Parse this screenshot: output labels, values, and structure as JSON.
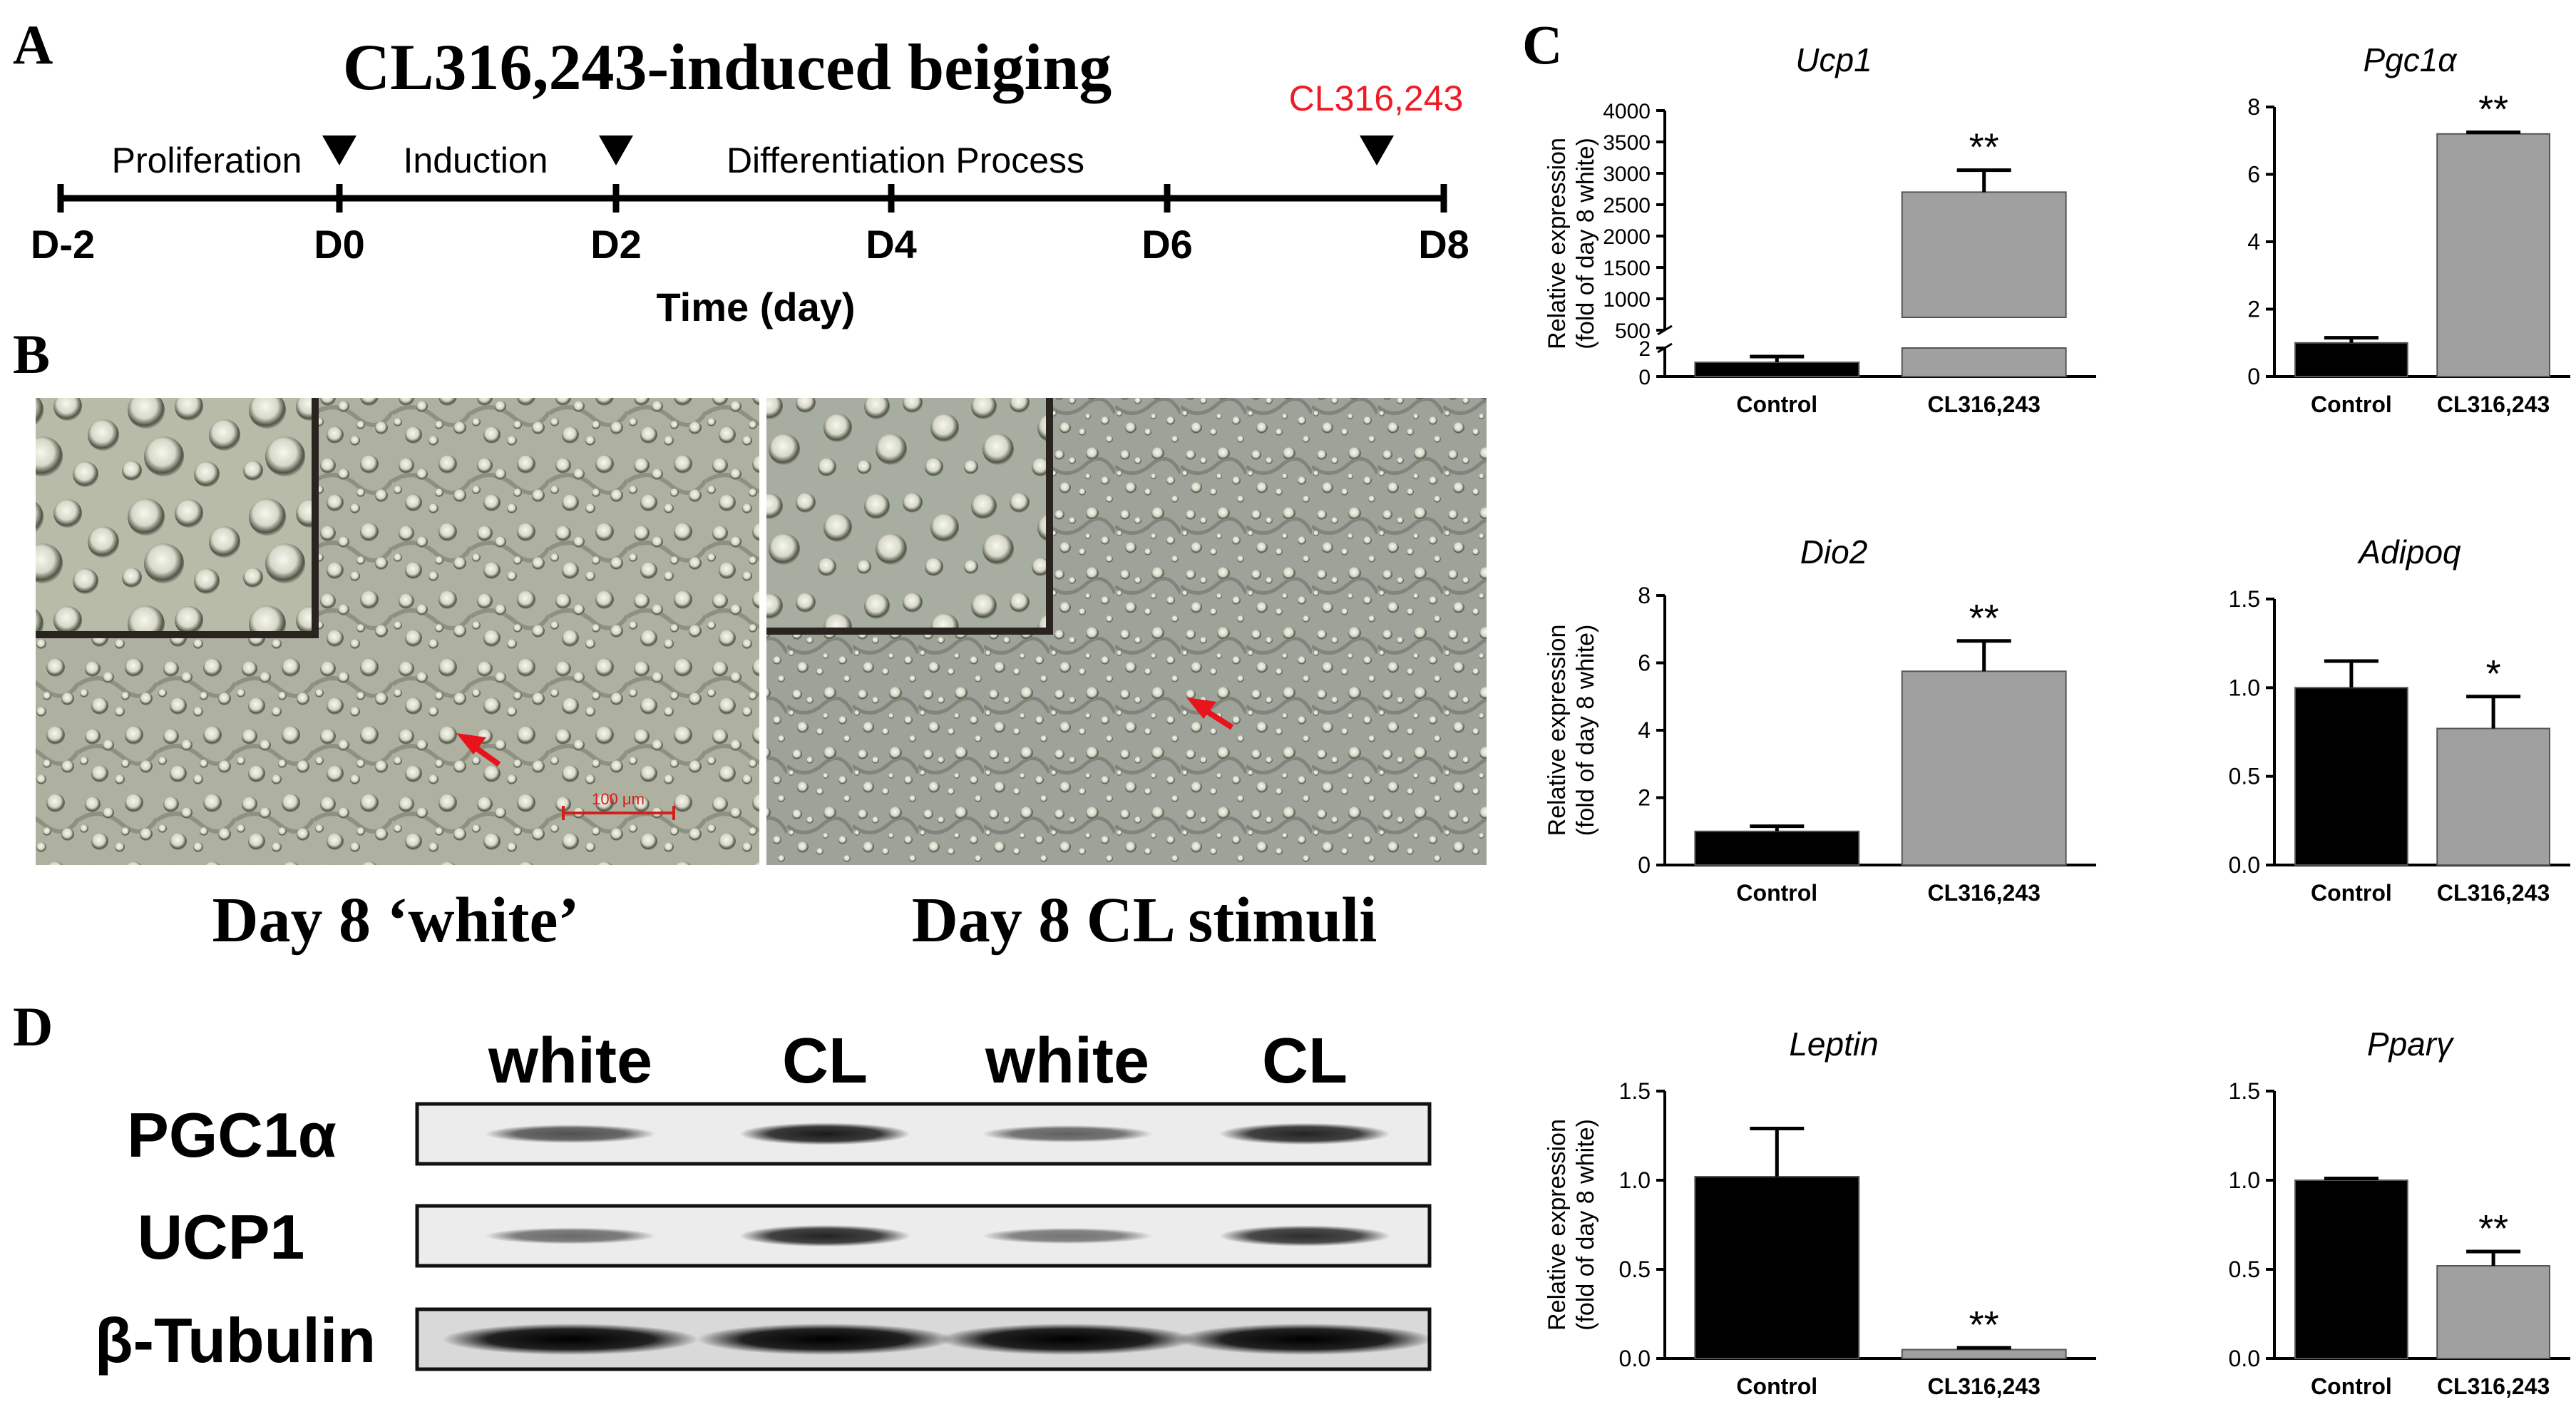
{
  "panels": {
    "a": "A",
    "b": "B",
    "c": "C",
    "d": "D"
  },
  "timeline": {
    "title": "CL316,243-induced beiging",
    "stimulus_label": "CL316,243",
    "stimulus_color": "#ee1c25",
    "phases": [
      "Proliferation",
      "Induction",
      "Differentiation Process"
    ],
    "ticks": [
      "D-2",
      "D0",
      "D2",
      "D4",
      "D6",
      "D8"
    ],
    "axis_label": "Time (day)"
  },
  "micrographs": {
    "left_caption": "Day 8 ‘white’",
    "right_caption": "Day 8 CL stimuli",
    "scale_bar": "100 μm",
    "arrow_color": "#e8141c"
  },
  "western": {
    "lanes": [
      "white",
      "CL",
      "white",
      "CL"
    ],
    "rows": [
      {
        "label": "PGC1α",
        "intensity": [
          0.55,
          0.85,
          0.45,
          0.8
        ]
      },
      {
        "label": "UCP1",
        "intensity": [
          0.4,
          0.8,
          0.35,
          0.75
        ]
      },
      {
        "label": "β-Tubulin",
        "intensity": [
          1,
          1,
          1,
          1
        ]
      }
    ]
  },
  "chart_data": [
    {
      "type": "bar",
      "title": "Ucp1",
      "ylabel": "Relative expression (fold of day 8 white)",
      "categories": [
        "Control",
        "CL316,243"
      ],
      "values": [
        1.0,
        2700
      ],
      "errors": [
        0.4,
        350
      ],
      "significance": [
        "",
        "**"
      ],
      "broken_axis": true,
      "lower_ticks": [
        "0",
        "2"
      ],
      "upper_ticks": [
        "500",
        "1000",
        "1500",
        "2000",
        "2500",
        "3000",
        "3500",
        "4000"
      ],
      "colors": [
        "#000000",
        "#a0a0a0"
      ]
    },
    {
      "type": "bar",
      "title": "Pgc1α",
      "ylabel": "",
      "categories": [
        "Control",
        "CL316,243"
      ],
      "values": [
        1.0,
        7.2
      ],
      "errors": [
        0.15,
        0.05
      ],
      "significance": [
        "",
        "**"
      ],
      "ylim": [
        0,
        8
      ],
      "ticks": [
        "0",
        "2",
        "4",
        "6",
        "8"
      ],
      "colors": [
        "#000000",
        "#a0a0a0"
      ]
    },
    {
      "type": "bar",
      "title": "Dio2",
      "ylabel": "Relative expression (fold of day 8 white)",
      "categories": [
        "Control",
        "CL316,243"
      ],
      "values": [
        1.0,
        5.75
      ],
      "errors": [
        0.15,
        0.9
      ],
      "significance": [
        "",
        "**"
      ],
      "ylim": [
        0,
        8
      ],
      "ticks": [
        "0",
        "2",
        "4",
        "6",
        "8"
      ],
      "colors": [
        "#000000",
        "#a0a0a0"
      ]
    },
    {
      "type": "bar",
      "title": "Adipoq",
      "ylabel": "",
      "categories": [
        "Control",
        "CL316,243"
      ],
      "values": [
        1.0,
        0.77
      ],
      "errors": [
        0.15,
        0.18
      ],
      "significance": [
        "",
        "*"
      ],
      "ylim": [
        0,
        1.5
      ],
      "ticks": [
        "0.0",
        "0.5",
        "1.0",
        "1.5"
      ],
      "colors": [
        "#000000",
        "#a0a0a0"
      ]
    },
    {
      "type": "bar",
      "title": "Leptin",
      "ylabel": "Relative expression (fold of day 8 white)",
      "categories": [
        "Control",
        "CL316,243"
      ],
      "values": [
        1.02,
        0.05
      ],
      "errors": [
        0.27,
        0.01
      ],
      "significance": [
        "",
        "**"
      ],
      "ylim": [
        0,
        1.5
      ],
      "ticks": [
        "0.0",
        "0.5",
        "1.0",
        "1.5"
      ],
      "colors": [
        "#000000",
        "#a0a0a0"
      ]
    },
    {
      "type": "bar",
      "title": "Pparγ",
      "ylabel": "",
      "categories": [
        "Control",
        "CL316,243"
      ],
      "values": [
        1.0,
        0.52
      ],
      "errors": [
        0.01,
        0.08
      ],
      "significance": [
        "",
        "**"
      ],
      "ylim": [
        0,
        1.5
      ],
      "ticks": [
        "0.0",
        "0.5",
        "1.0",
        "1.5"
      ],
      "colors": [
        "#000000",
        "#a0a0a0"
      ]
    }
  ]
}
